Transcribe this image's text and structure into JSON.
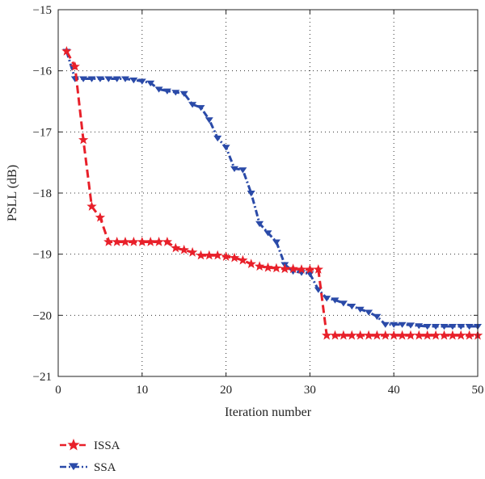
{
  "chart_data": {
    "type": "line",
    "xlabel": "Iteration number",
    "ylabel": "PSLL (dB)",
    "xlim": [
      0,
      50
    ],
    "ylim": [
      -21,
      -15
    ],
    "xticks": [
      0,
      10,
      20,
      30,
      40,
      50
    ],
    "yticks": [
      -15,
      -16,
      -17,
      -18,
      -19,
      -20,
      -21
    ],
    "grid": true,
    "legend_position": "bottom-left, below plot",
    "series": [
      {
        "name": "ISSA",
        "color": "#e8202a",
        "marker": "star",
        "line_style": "dashed",
        "x": [
          1,
          2,
          3,
          4,
          5,
          6,
          7,
          8,
          9,
          10,
          11,
          12,
          13,
          14,
          15,
          16,
          17,
          18,
          19,
          20,
          21,
          22,
          23,
          24,
          25,
          26,
          27,
          28,
          29,
          30,
          31,
          32,
          33,
          34,
          35,
          36,
          37,
          38,
          39,
          40,
          41,
          42,
          43,
          44,
          45,
          46,
          47,
          48,
          49,
          50
        ],
        "y": [
          -15.68,
          -15.93,
          -17.13,
          -18.22,
          -18.4,
          -18.8,
          -18.8,
          -18.8,
          -18.8,
          -18.8,
          -18.8,
          -18.8,
          -18.8,
          -18.9,
          -18.93,
          -18.97,
          -19.02,
          -19.02,
          -19.02,
          -19.04,
          -19.06,
          -19.1,
          -19.16,
          -19.2,
          -19.22,
          -19.23,
          -19.24,
          -19.24,
          -19.25,
          -19.25,
          -19.25,
          -20.33,
          -20.33,
          -20.33,
          -20.33,
          -20.33,
          -20.33,
          -20.33,
          -20.33,
          -20.33,
          -20.33,
          -20.33,
          -20.33,
          -20.33,
          -20.33,
          -20.33,
          -20.33,
          -20.33,
          -20.33,
          -20.33
        ]
      },
      {
        "name": "SSA",
        "color": "#2a4aa8",
        "marker": "triangle-down",
        "line_style": "dash-dot",
        "x": [
          1,
          2,
          3,
          4,
          5,
          6,
          7,
          8,
          9,
          10,
          11,
          12,
          13,
          14,
          15,
          16,
          17,
          18,
          19,
          20,
          21,
          22,
          23,
          24,
          25,
          26,
          27,
          28,
          29,
          30,
          31,
          32,
          33,
          34,
          35,
          36,
          37,
          38,
          39,
          40,
          41,
          42,
          43,
          44,
          45,
          46,
          47,
          48,
          49,
          50
        ],
        "y": [
          -15.68,
          -16.13,
          -16.13,
          -16.13,
          -16.13,
          -16.13,
          -16.13,
          -16.13,
          -16.15,
          -16.17,
          -16.2,
          -16.3,
          -16.33,
          -16.35,
          -16.37,
          -16.55,
          -16.6,
          -16.8,
          -17.1,
          -17.25,
          -17.6,
          -17.62,
          -18.0,
          -18.5,
          -18.65,
          -18.8,
          -19.17,
          -19.28,
          -19.3,
          -19.32,
          -19.58,
          -19.72,
          -19.75,
          -19.8,
          -19.85,
          -19.9,
          -19.95,
          -20.02,
          -20.15,
          -20.15,
          -20.15,
          -20.16,
          -20.17,
          -20.18,
          -20.18,
          -20.18,
          -20.18,
          -20.18,
          -20.18,
          -20.18
        ]
      }
    ]
  }
}
